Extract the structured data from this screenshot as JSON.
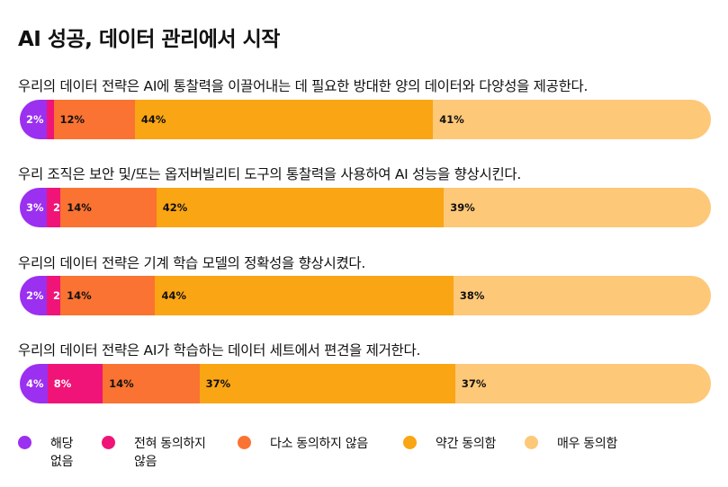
{
  "title": "AI 성공, 데이터 관리에서 시작",
  "colors": {
    "not_applicable": "#9b30f0",
    "strongly_disagree": "#f01478",
    "somewhat_disagree": "#fa7332",
    "somewhat_agree": "#faa514",
    "strongly_agree": "#fdc878"
  },
  "legend": [
    {
      "key": "not_applicable",
      "label": "해당\n없음"
    },
    {
      "key": "strongly_disagree",
      "label": "전혀 동의하지\n않음"
    },
    {
      "key": "somewhat_disagree",
      "label": "다소 동의하지 않음"
    },
    {
      "key": "somewhat_agree",
      "label": "약간 동의함"
    },
    {
      "key": "strongly_agree",
      "label": "매우 동의함"
    }
  ],
  "chart_data": {
    "type": "bar",
    "orientation": "horizontal",
    "stacked": true,
    "unit": "%",
    "categories": [
      "우리의 데이터 전략은 AI에 통찰력을 이끌어내는 데 필요한 방대한 양의 데이터와 다양성을 제공한다.",
      "우리 조직은 보안 및/또는 옵저버빌리티 도구의 통찰력을 사용하여 AI 성능을 향상시킨다.",
      "우리의 데이터 전략은 기계 학습 모델의 정확성을 향상시켰다.",
      "우리의 데이터 전략은 AI가 학습하는 데이터 세트에서 편견을 제거한다."
    ],
    "series": [
      {
        "name": "해당 없음",
        "key": "not_applicable",
        "values": [
          2,
          3,
          2,
          4
        ]
      },
      {
        "name": "전혀 동의하지 않음",
        "key": "strongly_disagree",
        "values": [
          1,
          2,
          2,
          8
        ]
      },
      {
        "name": "다소 동의하지 않음",
        "key": "somewhat_disagree",
        "values": [
          12,
          14,
          14,
          14
        ]
      },
      {
        "name": "약간 동의함",
        "key": "somewhat_agree",
        "values": [
          44,
          42,
          44,
          37
        ]
      },
      {
        "name": "매우 동의함",
        "key": "strongly_agree",
        "values": [
          41,
          39,
          38,
          37
        ]
      }
    ],
    "legend_position": "bottom"
  }
}
